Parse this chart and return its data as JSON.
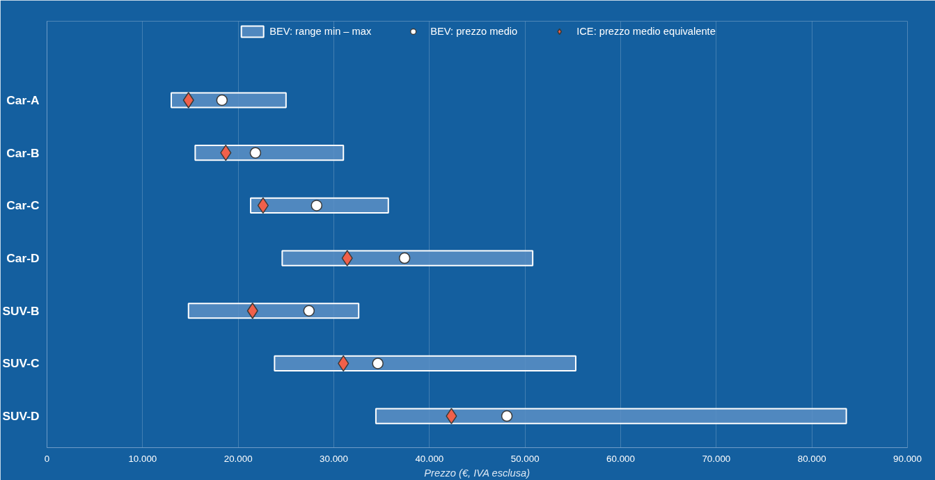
{
  "chart_data": {
    "type": "bar",
    "orientation": "horizontal",
    "categories": [
      "Car-A",
      "Car-B",
      "Car-C",
      "Car-D",
      "SUV-B",
      "SUV-C",
      "SUV-D"
    ],
    "series": [
      {
        "name": "BEV: range min – max",
        "type": "bar",
        "color": "#5b8fc4",
        "base": [
          13000,
          15500,
          21300,
          24600,
          14800,
          23800,
          34400
        ],
        "values": [
          12000,
          15500,
          14400,
          26200,
          17800,
          31500,
          49200
        ]
      },
      {
        "name": "BEV: prezzo medio",
        "type": "scatter",
        "marker": "circle",
        "color": "#ffffff",
        "values": [
          18300,
          21800,
          28200,
          37400,
          27400,
          34600,
          48100
        ]
      },
      {
        "name": "ICE: prezzo medio equivalente",
        "type": "scatter",
        "marker": "diamond",
        "color": "#f0604a",
        "values": [
          14800,
          18700,
          22600,
          31400,
          21500,
          31000,
          42300
        ]
      }
    ],
    "xlabel": "Prezzo (€, IVA esclusa)",
    "xlim": [
      0,
      90000
    ],
    "xticks": [
      0,
      {
        "value": 10000,
        "label": "10.000"
      },
      {
        "value": 20000,
        "label": "20.000"
      },
      {
        "value": 30000,
        "label": "30.000"
      },
      {
        "value": 40000,
        "label": "40.000"
      },
      {
        "value": 50000,
        "label": "50.000"
      },
      {
        "value": 60000,
        "label": "60.000"
      },
      {
        "value": 70000,
        "label": "70.000"
      },
      {
        "value": 80000,
        "label": "80.000"
      },
      {
        "value": 90000,
        "label": "90.000"
      }
    ],
    "grid": "x",
    "legend": "top"
  }
}
